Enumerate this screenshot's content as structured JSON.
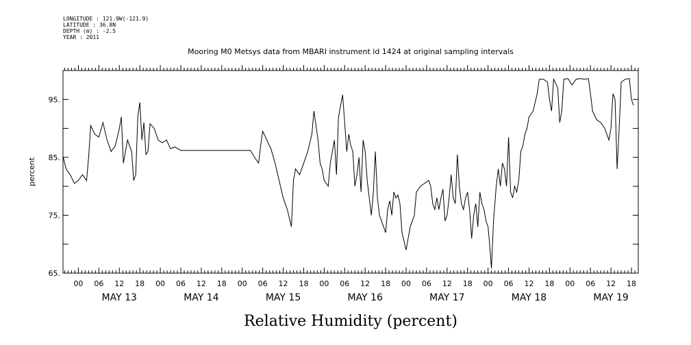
{
  "metadata": {
    "longitude": "LONGITUDE : 121.9W(-121.9)",
    "latitude": "LATITUDE : 36.8N",
    "depth": "DEPTH (m) : -2.5",
    "year": "YEAR : 2011"
  },
  "chart_data": {
    "type": "line",
    "title": "Mooring M0 Metsys data from MBARI instrument id 1424 at original sampling intervals",
    "xlabel": "Relative Humidity (percent)",
    "ylabel": "percent",
    "xlim_hours": [
      -4.5,
      164
    ],
    "ylim": [
      65,
      100
    ],
    "yticks": [
      65,
      70,
      75,
      80,
      85,
      90,
      95,
      100
    ],
    "ytick_labels": [
      "65.",
      "",
      "75.",
      "",
      "85.",
      "",
      "95.",
      ""
    ],
    "xtick_labels": [
      "00",
      "06",
      "12",
      "18"
    ],
    "days": [
      "MAY 13",
      "MAY 14",
      "MAY 15",
      "MAY 16",
      "MAY 17",
      "MAY 18",
      "MAY 19"
    ],
    "grid": false,
    "series": [
      {
        "values": [
          [
            -4.5,
            85.2
          ],
          [
            -3.6,
            83
          ],
          [
            -2.4,
            82
          ],
          [
            -1.2,
            80.5
          ],
          [
            0,
            81
          ],
          [
            1.2,
            82
          ],
          [
            2.4,
            81
          ],
          [
            3,
            85
          ],
          [
            3.6,
            90.5
          ],
          [
            4.8,
            89
          ],
          [
            6,
            88.5
          ],
          [
            7.2,
            91
          ],
          [
            8.4,
            88
          ],
          [
            9.6,
            86
          ],
          [
            10.8,
            87
          ],
          [
            12,
            90
          ],
          [
            12.6,
            92
          ],
          [
            13.2,
            84
          ],
          [
            14.4,
            88
          ],
          [
            15.6,
            86
          ],
          [
            16.2,
            81
          ],
          [
            16.8,
            82
          ],
          [
            17.4,
            92
          ],
          [
            18,
            94.5
          ],
          [
            18.6,
            88
          ],
          [
            19.2,
            91
          ],
          [
            19.8,
            85.5
          ],
          [
            20.4,
            86
          ],
          [
            21,
            90.8
          ],
          [
            22.2,
            90
          ],
          [
            23.4,
            88
          ],
          [
            24.6,
            87.5
          ],
          [
            25.8,
            88
          ],
          [
            27,
            86.5
          ],
          [
            28.2,
            86.8
          ],
          [
            30,
            86.2
          ],
          [
            36,
            86.2
          ],
          [
            42,
            86.2
          ],
          [
            48,
            86.2
          ],
          [
            50.4,
            86.2
          ],
          [
            51.6,
            85
          ],
          [
            52.8,
            84
          ],
          [
            53.4,
            87
          ],
          [
            54,
            89.5
          ],
          [
            55.2,
            88
          ],
          [
            56.4,
            86.5
          ],
          [
            57.6,
            84
          ],
          [
            58.8,
            81
          ],
          [
            60,
            78
          ],
          [
            61.2,
            76
          ],
          [
            62.4,
            73
          ],
          [
            63,
            81
          ],
          [
            63.6,
            83
          ],
          [
            64.8,
            82
          ],
          [
            66,
            84
          ],
          [
            67.2,
            86
          ],
          [
            68.4,
            89
          ],
          [
            69,
            93
          ],
          [
            70.2,
            88
          ],
          [
            70.8,
            84
          ],
          [
            71.4,
            83
          ],
          [
            72,
            81
          ],
          [
            73.2,
            80
          ],
          [
            73.8,
            84
          ],
          [
            75,
            88
          ],
          [
            75.6,
            82
          ],
          [
            76.2,
            92
          ],
          [
            77.4,
            95.8
          ],
          [
            78,
            91
          ],
          [
            78.6,
            86
          ],
          [
            79.2,
            89
          ],
          [
            79.8,
            87
          ],
          [
            80.4,
            86
          ],
          [
            81,
            80
          ],
          [
            81.6,
            82
          ],
          [
            82.2,
            85
          ],
          [
            82.8,
            79
          ],
          [
            83.4,
            88
          ],
          [
            84,
            86
          ],
          [
            84.6,
            81
          ],
          [
            85.2,
            78
          ],
          [
            85.8,
            75
          ],
          [
            86.4,
            79
          ],
          [
            87,
            86
          ],
          [
            87.6,
            78
          ],
          [
            88.2,
            75
          ],
          [
            88.8,
            74
          ],
          [
            89.4,
            73
          ],
          [
            90,
            72
          ],
          [
            90.6,
            76
          ],
          [
            91.2,
            77.5
          ],
          [
            91.8,
            75
          ],
          [
            92.4,
            79
          ],
          [
            93,
            78
          ],
          [
            93.6,
            78.5
          ],
          [
            94.2,
            77
          ],
          [
            94.8,
            72
          ],
          [
            96,
            69
          ],
          [
            97.2,
            73
          ],
          [
            97.8,
            74
          ],
          [
            98.4,
            75
          ],
          [
            99,
            79
          ],
          [
            100.2,
            80
          ],
          [
            101.4,
            80.5
          ],
          [
            102.6,
            81
          ],
          [
            103.2,
            80
          ],
          [
            103.8,
            77
          ],
          [
            104.4,
            76
          ],
          [
            105,
            78
          ],
          [
            105.6,
            76
          ],
          [
            106.2,
            78
          ],
          [
            106.8,
            79.5
          ],
          [
            107.4,
            74
          ],
          [
            108,
            75
          ],
          [
            108.6,
            78
          ],
          [
            109.2,
            82
          ],
          [
            109.8,
            78
          ],
          [
            110.4,
            77
          ],
          [
            111,
            85.5
          ],
          [
            111.6,
            80
          ],
          [
            112.2,
            77
          ],
          [
            112.8,
            76
          ],
          [
            113.4,
            78
          ],
          [
            114,
            79
          ],
          [
            114.6,
            76
          ],
          [
            115.2,
            71
          ],
          [
            115.8,
            75
          ],
          [
            116.4,
            77
          ],
          [
            117,
            73
          ],
          [
            117.6,
            79
          ],
          [
            118.2,
            77
          ],
          [
            118.8,
            76
          ],
          [
            119.4,
            74
          ],
          [
            120,
            73
          ],
          [
            120.6,
            69
          ],
          [
            121,
            65.8
          ],
          [
            121.6,
            74
          ],
          [
            122.4,
            80
          ],
          [
            123,
            83
          ],
          [
            123.6,
            80
          ],
          [
            124.2,
            84
          ],
          [
            124.8,
            83
          ],
          [
            125.4,
            80
          ],
          [
            126,
            88.5
          ],
          [
            126.6,
            79
          ],
          [
            127.2,
            78
          ],
          [
            127.8,
            80
          ],
          [
            128.4,
            79
          ],
          [
            129,
            81
          ],
          [
            129.6,
            86
          ],
          [
            130.2,
            87
          ],
          [
            130.8,
            89
          ],
          [
            131.4,
            90
          ],
          [
            132,
            92
          ],
          [
            133.2,
            93
          ],
          [
            134.4,
            96
          ],
          [
            135,
            98.5
          ],
          [
            136.2,
            98.5
          ],
          [
            137.4,
            98
          ],
          [
            138,
            95
          ],
          [
            138.6,
            93
          ],
          [
            139.2,
            98.5
          ],
          [
            140.4,
            97
          ],
          [
            141,
            91
          ],
          [
            141.6,
            93
          ],
          [
            142.2,
            98.5
          ],
          [
            143.4,
            98.6
          ],
          [
            144.6,
            97.5
          ],
          [
            145.8,
            98.5
          ],
          [
            147,
            98.6
          ],
          [
            148.2,
            98.5
          ],
          [
            149.4,
            98.6
          ],
          [
            150,
            96
          ],
          [
            150.6,
            93
          ],
          [
            151.8,
            91.5
          ],
          [
            153,
            91
          ],
          [
            154.2,
            90
          ],
          [
            155.4,
            88
          ],
          [
            156,
            90
          ],
          [
            156.6,
            96
          ],
          [
            157.2,
            95
          ],
          [
            157.8,
            83
          ],
          [
            158.4,
            90
          ],
          [
            159,
            98
          ],
          [
            160.2,
            98.5
          ],
          [
            161.4,
            98.6
          ],
          [
            162,
            95
          ],
          [
            162.6,
            94
          ]
        ]
      }
    ]
  }
}
